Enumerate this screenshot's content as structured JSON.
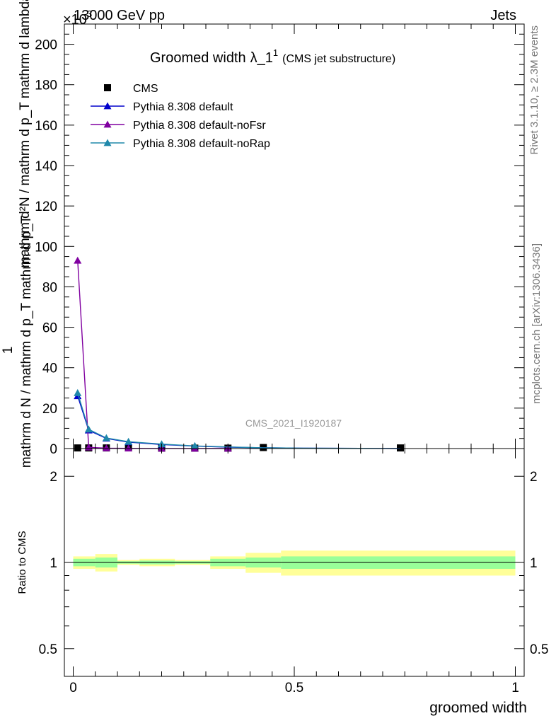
{
  "header": {
    "left": "13000 GeV pp",
    "right": "Jets",
    "exponent": "×10",
    "exponent_power": "3"
  },
  "side_text": {
    "rivet": "Rivet 3.1.10, ≥ 2.3M events",
    "mcplots": "mcplots.cern.ch [arXiv:1306.3436]"
  },
  "watermark": "CMS_2021_I1920187",
  "colors": {
    "cms": "#000000",
    "default": "#0000cc",
    "noFsr": "#8000a0",
    "noRap": "#1f88aa",
    "band_outer": "#ffff99",
    "band_inner": "#99ff99"
  },
  "chart_data": [
    {
      "type": "line",
      "title": "Groomed width",
      "title_symbol": "λ_1",
      "title_sup": "1",
      "title_note": "(CMS jet substructure)",
      "ylabel_numerator": "1",
      "ylabel_denominator": "mathrm d N / mathrm d p_T mathrm d p_T",
      "ylabel_main": "mathrm d²N / mathrm d p_T mathrm d lambda",
      "ylim": [
        0,
        210
      ],
      "y_scale_label": "×10³",
      "yticks": [
        0,
        20,
        40,
        60,
        80,
        100,
        120,
        140,
        160,
        180,
        200
      ],
      "xlim": [
        -0.02,
        1.02
      ],
      "legend_position": "top-left",
      "series": [
        {
          "name": "CMS",
          "marker": "square",
          "x": [
            0.01,
            0.035,
            0.075,
            0.125,
            0.2,
            0.275,
            0.35,
            0.43,
            0.74
          ],
          "y": [
            0.3,
            0.3,
            0.3,
            0.5,
            0.2,
            0.2,
            0.2,
            0.5,
            0.3
          ]
        },
        {
          "name": "Pythia 8.308 default",
          "marker": "triangle",
          "x": [
            0.01,
            0.035,
            0.075,
            0.125,
            0.2,
            0.275,
            0.35,
            0.43,
            0.52,
            0.65,
            0.74
          ],
          "y": [
            26,
            9,
            5,
            3.2,
            2,
            1.2,
            0.7,
            0.4,
            0.2,
            0.1,
            0.05
          ]
        },
        {
          "name": "Pythia 8.308 default-noFsr",
          "marker": "triangle",
          "x": [
            0.01,
            0.035,
            0.075,
            0.125,
            0.2,
            0.275,
            0.35
          ],
          "y": [
            93,
            0.6,
            0.2,
            0.1,
            0.05,
            0.02,
            0.01
          ]
        },
        {
          "name": "Pythia 8.308 default-noRap",
          "marker": "triangle",
          "x": [
            0.01,
            0.035,
            0.075,
            0.125,
            0.2,
            0.275,
            0.35,
            0.43,
            0.52,
            0.65,
            0.74
          ],
          "y": [
            27.5,
            9.5,
            5.2,
            3.4,
            2.2,
            1.3,
            0.8,
            0.4,
            0.2,
            0.1,
            0.05
          ]
        }
      ]
    },
    {
      "type": "area",
      "ylabel": "Ratio to CMS",
      "xlabel": "groomed width",
      "yscale": "log",
      "ylim": [
        0.4,
        2.5
      ],
      "yticks": [
        0.5,
        1,
        2
      ],
      "ytick_labels": [
        "0.5",
        "1",
        "2"
      ],
      "xlim": [
        -0.02,
        1.02
      ],
      "xticks": [
        0,
        0.5,
        1
      ],
      "xtick_labels": [
        "0",
        "0.5",
        "1"
      ],
      "bins": [
        {
          "lo": 0.0,
          "hi": 0.05,
          "outer": [
            0.95,
            1.05
          ],
          "inner": [
            0.97,
            1.03
          ]
        },
        {
          "lo": 0.05,
          "hi": 0.1,
          "outer": [
            0.93,
            1.07
          ],
          "inner": [
            0.96,
            1.04
          ]
        },
        {
          "lo": 0.1,
          "hi": 0.15,
          "outer": [
            0.98,
            1.02
          ],
          "inner": [
            0.99,
            1.01
          ]
        },
        {
          "lo": 0.15,
          "hi": 0.23,
          "outer": [
            0.97,
            1.03
          ],
          "inner": [
            0.985,
            1.015
          ]
        },
        {
          "lo": 0.23,
          "hi": 0.31,
          "outer": [
            0.98,
            1.02
          ],
          "inner": [
            0.99,
            1.01
          ]
        },
        {
          "lo": 0.31,
          "hi": 0.39,
          "outer": [
            0.95,
            1.05
          ],
          "inner": [
            0.97,
            1.03
          ]
        },
        {
          "lo": 0.39,
          "hi": 0.47,
          "outer": [
            0.92,
            1.08
          ],
          "inner": [
            0.96,
            1.04
          ]
        },
        {
          "lo": 0.47,
          "hi": 1.0,
          "outer": [
            0.9,
            1.1
          ],
          "inner": [
            0.95,
            1.05
          ]
        }
      ]
    }
  ]
}
